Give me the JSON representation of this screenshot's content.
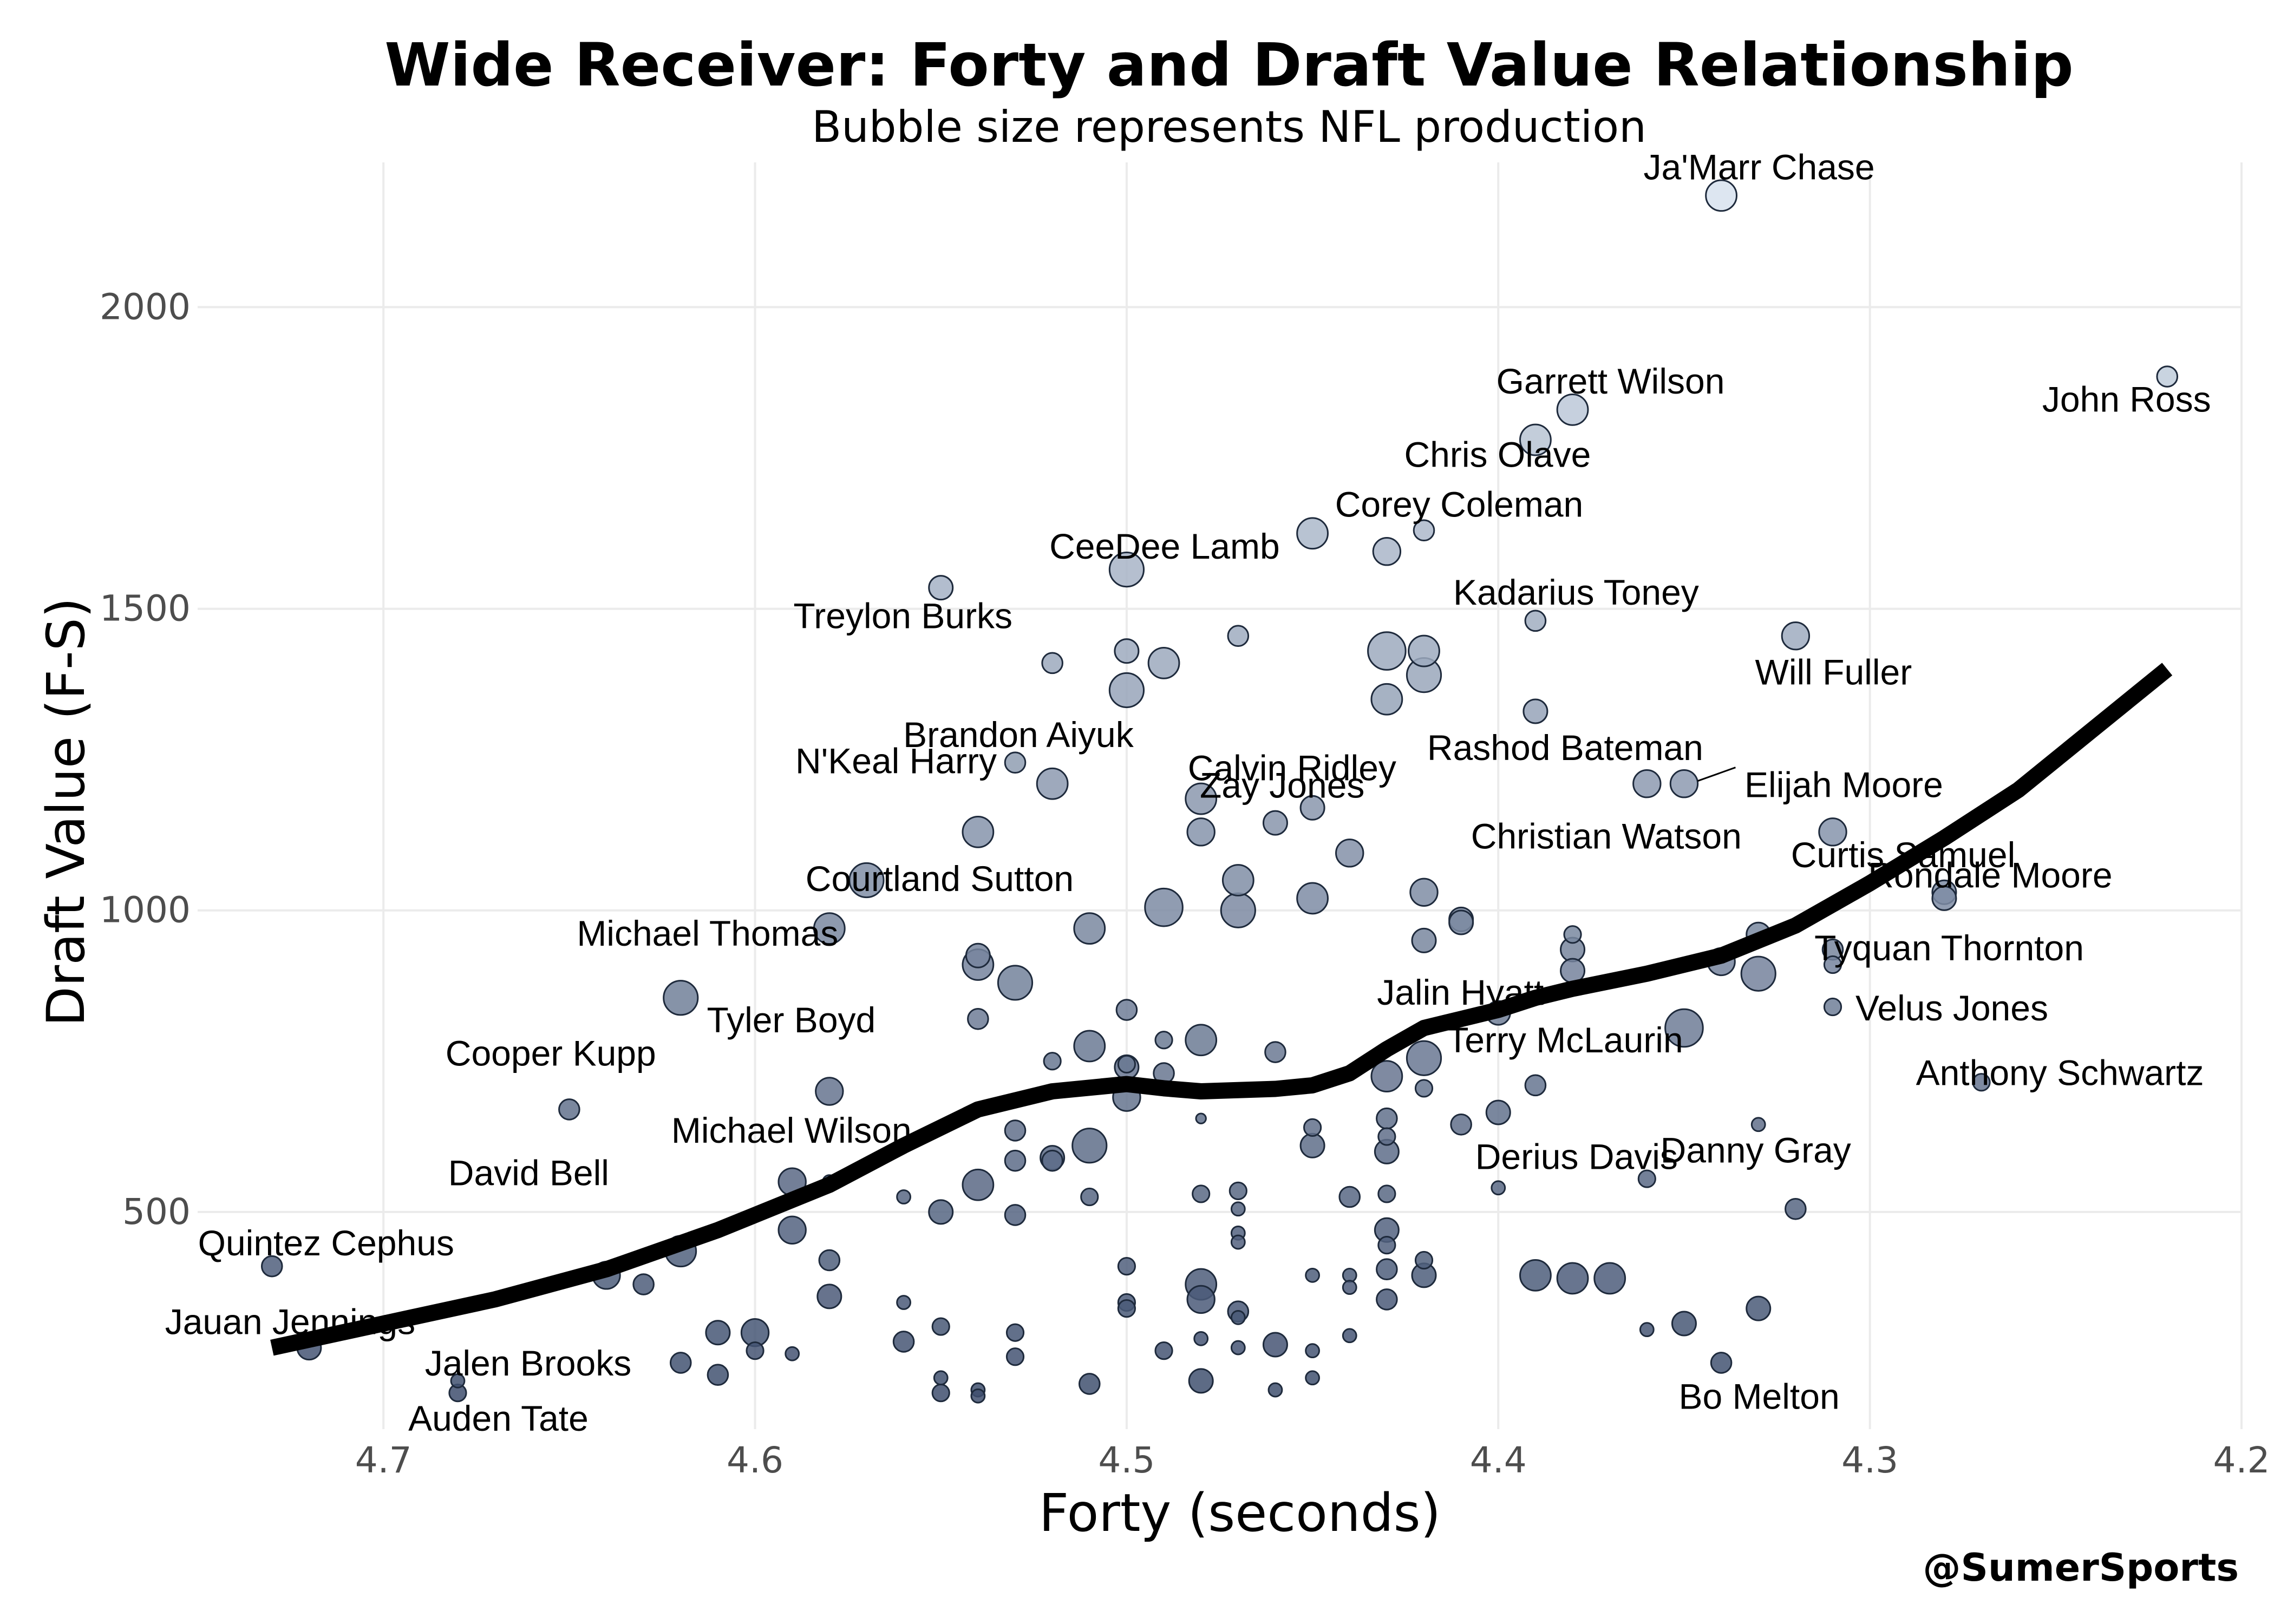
{
  "chart_data": {
    "type": "scatter",
    "title": "Wide Receiver: Forty and Draft Value Relationship",
    "subtitle": "Bubble size represents NFL production",
    "xlabel": "Forty (seconds)",
    "ylabel": "Draft Value (F-S)",
    "caption": "@SumerSports",
    "x_reversed": true,
    "xlim": [
      4.75,
      4.2
    ],
    "ylim": [
      140,
      2240
    ],
    "x_ticks": [
      4.7,
      4.6,
      4.5,
      4.4,
      4.3,
      4.2
    ],
    "x_tick_labels": [
      "4.7",
      "4.6",
      "4.5",
      "4.4",
      "4.3",
      "4.2"
    ],
    "y_ticks": [
      500,
      1000,
      1500,
      2000
    ],
    "y_tick_labels": [
      "500",
      "1000",
      "1500",
      "2000"
    ],
    "grid": true,
    "point_color_range": [
      "#3b4b6b",
      "#dbe6f2"
    ],
    "trend_color": "#000000",
    "points": [
      {
        "x": 4.34,
        "y": 2185,
        "size": 7,
        "label": "Ja'Marr Chase"
      },
      {
        "x": 4.22,
        "y": 1885,
        "size": 4,
        "label": "John Ross"
      },
      {
        "x": 4.38,
        "y": 1830,
        "size": 7,
        "label": "Garrett Wilson"
      },
      {
        "x": 4.39,
        "y": 1780,
        "size": 7,
        "label": "Chris Olave"
      },
      {
        "x": 4.42,
        "y": 1630,
        "size": 4,
        "label": "Corey Coleman"
      },
      {
        "x": 4.45,
        "y": 1625,
        "size": 7
      },
      {
        "x": 4.43,
        "y": 1595,
        "size": 6
      },
      {
        "x": 4.5,
        "y": 1565,
        "size": 8,
        "label": "CeeDee Lamb"
      },
      {
        "x": 4.55,
        "y": 1535,
        "size": 5,
        "label": "Treylon Burks"
      },
      {
        "x": 4.39,
        "y": 1480,
        "size": 4,
        "label": "Kadarius Toney"
      },
      {
        "x": 4.32,
        "y": 1455,
        "size": 6,
        "label": "Will Fuller"
      },
      {
        "x": 4.47,
        "y": 1455,
        "size": 4
      },
      {
        "x": 4.43,
        "y": 1430,
        "size": 9
      },
      {
        "x": 4.42,
        "y": 1430,
        "size": 7
      },
      {
        "x": 4.5,
        "y": 1430,
        "size": 5
      },
      {
        "x": 4.52,
        "y": 1410,
        "size": 4
      },
      {
        "x": 4.49,
        "y": 1410,
        "size": 7
      },
      {
        "x": 4.42,
        "y": 1390,
        "size": 8
      },
      {
        "x": 4.5,
        "y": 1365,
        "size": 8,
        "label": "Brandon Aiyuk"
      },
      {
        "x": 4.43,
        "y": 1350,
        "size": 7,
        "label": "Calvin Ridley"
      },
      {
        "x": 4.39,
        "y": 1330,
        "size": 5,
        "label": "Rashod Bateman"
      },
      {
        "x": 4.53,
        "y": 1245,
        "size": 4,
        "label": "N'Keal Harry"
      },
      {
        "x": 4.36,
        "y": 1210,
        "size": 6,
        "label": "Christian Watson"
      },
      {
        "x": 4.35,
        "y": 1210,
        "size": 6,
        "label": "Elijah Moore"
      },
      {
        "x": 4.52,
        "y": 1210,
        "size": 7
      },
      {
        "x": 4.48,
        "y": 1185,
        "size": 7,
        "label": "Zay Jones"
      },
      {
        "x": 4.45,
        "y": 1170,
        "size": 5
      },
      {
        "x": 4.46,
        "y": 1145,
        "size": 5
      },
      {
        "x": 4.31,
        "y": 1130,
        "size": 6,
        "label": "Curtis Samuel"
      },
      {
        "x": 4.54,
        "y": 1130,
        "size": 7
      },
      {
        "x": 4.48,
        "y": 1130,
        "size": 6
      },
      {
        "x": 4.44,
        "y": 1095,
        "size": 6
      },
      {
        "x": 4.57,
        "y": 1050,
        "size": 8,
        "label": "Courtland Sutton"
      },
      {
        "x": 4.47,
        "y": 1050,
        "size": 7
      },
      {
        "x": 4.42,
        "y": 1030,
        "size": 6
      },
      {
        "x": 4.28,
        "y": 1030,
        "size": 5
      },
      {
        "x": 4.28,
        "y": 1020,
        "size": 5,
        "label": "Rondale Moore"
      },
      {
        "x": 4.45,
        "y": 1020,
        "size": 7
      },
      {
        "x": 4.49,
        "y": 1005,
        "size": 9
      },
      {
        "x": 4.47,
        "y": 1000,
        "size": 8
      },
      {
        "x": 4.41,
        "y": 985,
        "size": 5
      },
      {
        "x": 4.41,
        "y": 980,
        "size": 5
      },
      {
        "x": 4.58,
        "y": 970,
        "size": 7,
        "label": "Michael Thomas"
      },
      {
        "x": 4.51,
        "y": 970,
        "size": 7
      },
      {
        "x": 4.38,
        "y": 960,
        "size": 3
      },
      {
        "x": 4.33,
        "y": 960,
        "size": 5
      },
      {
        "x": 4.42,
        "y": 950,
        "size": 5
      },
      {
        "x": 4.38,
        "y": 935,
        "size": 5
      },
      {
        "x": 4.31,
        "y": 935,
        "size": 4,
        "label": "Tyquan Thornton"
      },
      {
        "x": 4.54,
        "y": 925,
        "size": 5
      },
      {
        "x": 4.34,
        "y": 915,
        "size": 6
      },
      {
        "x": 4.31,
        "y": 910,
        "size": 3
      },
      {
        "x": 4.54,
        "y": 910,
        "size": 7,
        "label": "Tyler Boyd"
      },
      {
        "x": 4.38,
        "y": 900,
        "size": 5
      },
      {
        "x": 4.33,
        "y": 895,
        "size": 8
      },
      {
        "x": 4.53,
        "y": 880,
        "size": 8
      },
      {
        "x": 4.62,
        "y": 855,
        "size": 8,
        "label": "Cooper Kupp"
      },
      {
        "x": 4.31,
        "y": 840,
        "size": 3,
        "label": "Velus Jones"
      },
      {
        "x": 4.5,
        "y": 835,
        "size": 4
      },
      {
        "x": 4.4,
        "y": 830,
        "size": 5,
        "label": "Jalin Hyatt"
      },
      {
        "x": 4.54,
        "y": 820,
        "size": 4
      },
      {
        "x": 4.35,
        "y": 805,
        "size": 9,
        "label": "Terry McLaurin"
      },
      {
        "x": 4.48,
        "y": 785,
        "size": 7
      },
      {
        "x": 4.49,
        "y": 785,
        "size": 3
      },
      {
        "x": 4.51,
        "y": 775,
        "size": 7
      },
      {
        "x": 4.46,
        "y": 765,
        "size": 4
      },
      {
        "x": 4.42,
        "y": 755,
        "size": 8
      },
      {
        "x": 4.52,
        "y": 750,
        "size": 3
      },
      {
        "x": 4.5,
        "y": 745,
        "size": 3
      },
      {
        "x": 4.5,
        "y": 740,
        "size": 5
      },
      {
        "x": 4.49,
        "y": 730,
        "size": 4
      },
      {
        "x": 4.43,
        "y": 725,
        "size": 7
      },
      {
        "x": 4.27,
        "y": 715,
        "size": 3,
        "label": "Anthony Schwartz"
      },
      {
        "x": 4.39,
        "y": 710,
        "size": 4
      },
      {
        "x": 4.42,
        "y": 705,
        "size": 3
      },
      {
        "x": 4.58,
        "y": 700,
        "size": 6,
        "label": "Michael Wilson"
      },
      {
        "x": 4.5,
        "y": 690,
        "size": 6
      },
      {
        "x": 4.65,
        "y": 670,
        "size": 4,
        "label": "David Bell"
      },
      {
        "x": 4.4,
        "y": 665,
        "size": 5
      },
      {
        "x": 4.43,
        "y": 655,
        "size": 4
      },
      {
        "x": 4.48,
        "y": 655,
        "size": 1
      },
      {
        "x": 4.41,
        "y": 645,
        "size": 4
      },
      {
        "x": 4.33,
        "y": 645,
        "size": 2,
        "label": "Danny Gray"
      },
      {
        "x": 4.45,
        "y": 640,
        "size": 3
      },
      {
        "x": 4.53,
        "y": 635,
        "size": 4
      },
      {
        "x": 4.43,
        "y": 625,
        "size": 3
      },
      {
        "x": 4.51,
        "y": 610,
        "size": 8
      },
      {
        "x": 4.45,
        "y": 610,
        "size": 5
      },
      {
        "x": 4.43,
        "y": 600,
        "size": 5
      },
      {
        "x": 4.52,
        "y": 590,
        "size": 5
      },
      {
        "x": 4.52,
        "y": 585,
        "size": 4
      },
      {
        "x": 4.53,
        "y": 585,
        "size": 4
      },
      {
        "x": 4.36,
        "y": 555,
        "size": 3,
        "label": "Derius Davis"
      },
      {
        "x": 4.59,
        "y": 550,
        "size": 6
      },
      {
        "x": 4.58,
        "y": 550,
        "size": 2
      },
      {
        "x": 4.54,
        "y": 545,
        "size": 7
      },
      {
        "x": 4.4,
        "y": 540,
        "size": 2
      },
      {
        "x": 4.47,
        "y": 535,
        "size": 3
      },
      {
        "x": 4.48,
        "y": 530,
        "size": 3
      },
      {
        "x": 4.43,
        "y": 530,
        "size": 3
      },
      {
        "x": 4.56,
        "y": 525,
        "size": 2
      },
      {
        "x": 4.51,
        "y": 525,
        "size": 3
      },
      {
        "x": 4.44,
        "y": 525,
        "size": 4
      },
      {
        "x": 4.47,
        "y": 505,
        "size": 2
      },
      {
        "x": 4.32,
        "y": 505,
        "size": 4
      },
      {
        "x": 4.55,
        "y": 500,
        "size": 5
      },
      {
        "x": 4.53,
        "y": 495,
        "size": 4
      },
      {
        "x": 4.6,
        "y": 495,
        "size": 2
      },
      {
        "x": 4.59,
        "y": 470,
        "size": 6
      },
      {
        "x": 4.43,
        "y": 470,
        "size": 5
      },
      {
        "x": 4.47,
        "y": 465,
        "size": 2
      },
      {
        "x": 4.47,
        "y": 450,
        "size": 2
      },
      {
        "x": 4.43,
        "y": 445,
        "size": 3
      },
      {
        "x": 4.62,
        "y": 435,
        "size": 7
      },
      {
        "x": 4.58,
        "y": 420,
        "size": 4
      },
      {
        "x": 4.42,
        "y": 420,
        "size": 3
      },
      {
        "x": 4.73,
        "y": 410,
        "size": 4,
        "label": "Quintez Cephus"
      },
      {
        "x": 4.5,
        "y": 410,
        "size": 3
      },
      {
        "x": 4.43,
        "y": 405,
        "size": 4
      },
      {
        "x": 4.64,
        "y": 395,
        "size": 6
      },
      {
        "x": 4.39,
        "y": 395,
        "size": 7
      },
      {
        "x": 4.42,
        "y": 395,
        "size": 5
      },
      {
        "x": 4.45,
        "y": 395,
        "size": 2
      },
      {
        "x": 4.44,
        "y": 395,
        "size": 2
      },
      {
        "x": 4.38,
        "y": 390,
        "size": 7
      },
      {
        "x": 4.37,
        "y": 390,
        "size": 7
      },
      {
        "x": 4.48,
        "y": 380,
        "size": 7
      },
      {
        "x": 4.63,
        "y": 380,
        "size": 4
      },
      {
        "x": 4.44,
        "y": 375,
        "size": 2
      },
      {
        "x": 4.58,
        "y": 360,
        "size": 5
      },
      {
        "x": 4.48,
        "y": 355,
        "size": 6
      },
      {
        "x": 4.43,
        "y": 355,
        "size": 4
      },
      {
        "x": 4.56,
        "y": 350,
        "size": 2
      },
      {
        "x": 4.5,
        "y": 350,
        "size": 3
      },
      {
        "x": 4.5,
        "y": 340,
        "size": 3
      },
      {
        "x": 4.33,
        "y": 340,
        "size": 5
      },
      {
        "x": 4.47,
        "y": 335,
        "size": 4
      },
      {
        "x": 4.47,
        "y": 325,
        "size": 2
      },
      {
        "x": 4.35,
        "y": 315,
        "size": 5
      },
      {
        "x": 4.55,
        "y": 310,
        "size": 3
      },
      {
        "x": 4.36,
        "y": 305,
        "size": 2
      },
      {
        "x": 4.6,
        "y": 300,
        "size": 6
      },
      {
        "x": 4.61,
        "y": 300,
        "size": 5
      },
      {
        "x": 4.53,
        "y": 300,
        "size": 3
      },
      {
        "x": 4.44,
        "y": 295,
        "size": 2
      },
      {
        "x": 4.48,
        "y": 290,
        "size": 2
      },
      {
        "x": 4.56,
        "y": 285,
        "size": 4
      },
      {
        "x": 4.46,
        "y": 280,
        "size": 5
      },
      {
        "x": 4.72,
        "y": 275,
        "size": 5,
        "label": "Jauan Jennings"
      },
      {
        "x": 4.47,
        "y": 275,
        "size": 2
      },
      {
        "x": 4.49,
        "y": 270,
        "size": 3
      },
      {
        "x": 4.45,
        "y": 270,
        "size": 2
      },
      {
        "x": 4.6,
        "y": 270,
        "size": 3
      },
      {
        "x": 4.59,
        "y": 265,
        "size": 2
      },
      {
        "x": 4.53,
        "y": 260,
        "size": 3
      },
      {
        "x": 4.62,
        "y": 250,
        "size": 4
      },
      {
        "x": 4.34,
        "y": 250,
        "size": 4,
        "label": "Bo Melton"
      },
      {
        "x": 4.61,
        "y": 230,
        "size": 4
      },
      {
        "x": 4.55,
        "y": 225,
        "size": 2
      },
      {
        "x": 4.45,
        "y": 225,
        "size": 2
      },
      {
        "x": 4.68,
        "y": 220,
        "size": 2,
        "label": "Jalen Brooks"
      },
      {
        "x": 4.48,
        "y": 220,
        "size": 5
      },
      {
        "x": 4.51,
        "y": 215,
        "size": 4
      },
      {
        "x": 4.46,
        "y": 205,
        "size": 2
      },
      {
        "x": 4.54,
        "y": 205,
        "size": 2
      },
      {
        "x": 4.68,
        "y": 200,
        "size": 3,
        "label": "Auden Tate"
      },
      {
        "x": 4.55,
        "y": 200,
        "size": 3
      },
      {
        "x": 4.54,
        "y": 195,
        "size": 2
      }
    ],
    "trend": {
      "x": [
        4.73,
        4.7,
        4.67,
        4.64,
        4.61,
        4.58,
        4.56,
        4.54,
        4.52,
        4.5,
        4.49,
        4.48,
        4.47,
        4.46,
        4.45,
        4.44,
        4.43,
        4.42,
        4.41,
        4.4,
        4.39,
        4.38,
        4.36,
        4.34,
        4.32,
        4.3,
        4.28,
        4.26,
        4.24,
        4.22
      ],
      "y": [
        275,
        315,
        355,
        405,
        470,
        545,
        610,
        670,
        700,
        712,
        705,
        700,
        702,
        704,
        710,
        730,
        770,
        805,
        820,
        835,
        855,
        870,
        895,
        925,
        975,
        1045,
        1120,
        1200,
        1300,
        1400
      ]
    }
  }
}
